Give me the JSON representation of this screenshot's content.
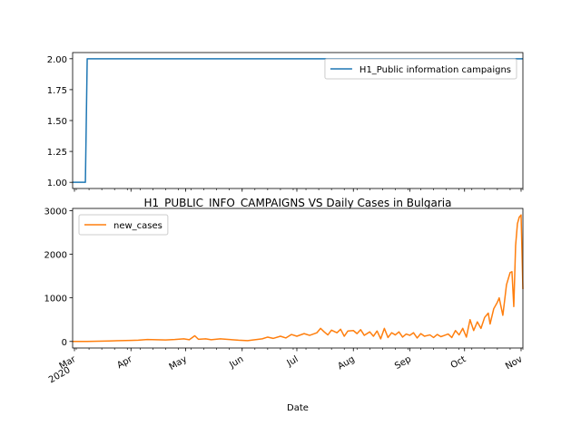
{
  "chart_data": [
    {
      "type": "line",
      "title": "",
      "xlabel": "",
      "ylabel": "",
      "ylim": [
        0.95,
        2.05
      ],
      "yticks": [
        "1.00",
        "1.25",
        "1.50",
        "1.75",
        "2.00"
      ],
      "grid": false,
      "legend_position": "top-right",
      "x_start": "2020-02-29",
      "x_end": "2020-11-02",
      "series": [
        {
          "name": "H1_Public information campaigns",
          "color": "#1f77b4",
          "points": [
            [
              "2020-02-29",
              1
            ],
            [
              "2020-03-07",
              1
            ],
            [
              "2020-03-08",
              2
            ],
            [
              "2020-11-02",
              2
            ]
          ]
        }
      ]
    },
    {
      "type": "line",
      "title": "H1_PUBLIC_INFO_CAMPAIGNS VS Daily Cases in Bulgaria",
      "xlabel": "Date",
      "ylabel": "",
      "ylim": [
        -150,
        3050
      ],
      "yticks": [
        "0",
        "1000",
        "2000",
        "3000"
      ],
      "grid": false,
      "legend_position": "top-left",
      "x_start": "2020-02-29",
      "x_end": "2020-11-02",
      "x_tick_labels": [
        {
          "date": "2020-03-01",
          "label": "Mar",
          "sub": "2020"
        },
        {
          "date": "2020-04-01",
          "label": "Apr"
        },
        {
          "date": "2020-05-01",
          "label": "May"
        },
        {
          "date": "2020-06-01",
          "label": "Jun"
        },
        {
          "date": "2020-07-01",
          "label": "Jul"
        },
        {
          "date": "2020-08-01",
          "label": "Aug"
        },
        {
          "date": "2020-09-01",
          "label": "Sep"
        },
        {
          "date": "2020-10-01",
          "label": "Oct"
        },
        {
          "date": "2020-11-01",
          "label": "Nov"
        }
      ],
      "series": [
        {
          "name": "new_cases",
          "color": "#ff7f0e",
          "points": [
            [
              "2020-02-29",
              0
            ],
            [
              "2020-03-08",
              0
            ],
            [
              "2020-03-14",
              5
            ],
            [
              "2020-03-20",
              10
            ],
            [
              "2020-03-26",
              20
            ],
            [
              "2020-04-01",
              25
            ],
            [
              "2020-04-05",
              30
            ],
            [
              "2020-04-10",
              45
            ],
            [
              "2020-04-15",
              40
            ],
            [
              "2020-04-20",
              35
            ],
            [
              "2020-04-25",
              45
            ],
            [
              "2020-04-30",
              60
            ],
            [
              "2020-05-03",
              40
            ],
            [
              "2020-05-06",
              130
            ],
            [
              "2020-05-08",
              50
            ],
            [
              "2020-05-12",
              60
            ],
            [
              "2020-05-15",
              40
            ],
            [
              "2020-05-20",
              60
            ],
            [
              "2020-05-25",
              45
            ],
            [
              "2020-05-30",
              30
            ],
            [
              "2020-06-04",
              20
            ],
            [
              "2020-06-08",
              40
            ],
            [
              "2020-06-12",
              60
            ],
            [
              "2020-06-15",
              100
            ],
            [
              "2020-06-18",
              70
            ],
            [
              "2020-06-22",
              120
            ],
            [
              "2020-06-25",
              80
            ],
            [
              "2020-06-28",
              160
            ],
            [
              "2020-07-01",
              120
            ],
            [
              "2020-07-05",
              180
            ],
            [
              "2020-07-08",
              140
            ],
            [
              "2020-07-12",
              200
            ],
            [
              "2020-07-14",
              300
            ],
            [
              "2020-07-16",
              220
            ],
            [
              "2020-07-18",
              150
            ],
            [
              "2020-07-20",
              260
            ],
            [
              "2020-07-23",
              200
            ],
            [
              "2020-07-25",
              280
            ],
            [
              "2020-07-27",
              120
            ],
            [
              "2020-07-29",
              240
            ],
            [
              "2020-08-01",
              250
            ],
            [
              "2020-08-03",
              180
            ],
            [
              "2020-08-05",
              270
            ],
            [
              "2020-08-07",
              140
            ],
            [
              "2020-08-10",
              220
            ],
            [
              "2020-08-12",
              120
            ],
            [
              "2020-08-14",
              240
            ],
            [
              "2020-08-16",
              60
            ],
            [
              "2020-08-18",
              300
            ],
            [
              "2020-08-20",
              90
            ],
            [
              "2020-08-22",
              200
            ],
            [
              "2020-08-24",
              150
            ],
            [
              "2020-08-26",
              220
            ],
            [
              "2020-08-28",
              100
            ],
            [
              "2020-08-30",
              170
            ],
            [
              "2020-09-01",
              140
            ],
            [
              "2020-09-03",
              200
            ],
            [
              "2020-09-05",
              80
            ],
            [
              "2020-09-07",
              180
            ],
            [
              "2020-09-09",
              120
            ],
            [
              "2020-09-12",
              150
            ],
            [
              "2020-09-14",
              90
            ],
            [
              "2020-09-16",
              160
            ],
            [
              "2020-09-18",
              110
            ],
            [
              "2020-09-20",
              140
            ],
            [
              "2020-09-22",
              170
            ],
            [
              "2020-09-24",
              90
            ],
            [
              "2020-09-26",
              250
            ],
            [
              "2020-09-28",
              150
            ],
            [
              "2020-09-30",
              300
            ],
            [
              "2020-10-02",
              100
            ],
            [
              "2020-10-04",
              500
            ],
            [
              "2020-10-06",
              250
            ],
            [
              "2020-10-08",
              450
            ],
            [
              "2020-10-10",
              300
            ],
            [
              "2020-10-12",
              550
            ],
            [
              "2020-10-14",
              650
            ],
            [
              "2020-10-15",
              400
            ],
            [
              "2020-10-17",
              750
            ],
            [
              "2020-10-19",
              900
            ],
            [
              "2020-10-20",
              1000
            ],
            [
              "2020-10-22",
              600
            ],
            [
              "2020-10-24",
              1300
            ],
            [
              "2020-10-26",
              1580
            ],
            [
              "2020-10-27",
              1600
            ],
            [
              "2020-10-28",
              800
            ],
            [
              "2020-10-29",
              2200
            ],
            [
              "2020-10-30",
              2700
            ],
            [
              "2020-10-31",
              2850
            ],
            [
              "2020-11-01",
              2900
            ],
            [
              "2020-11-02",
              1200
            ]
          ]
        }
      ]
    }
  ]
}
